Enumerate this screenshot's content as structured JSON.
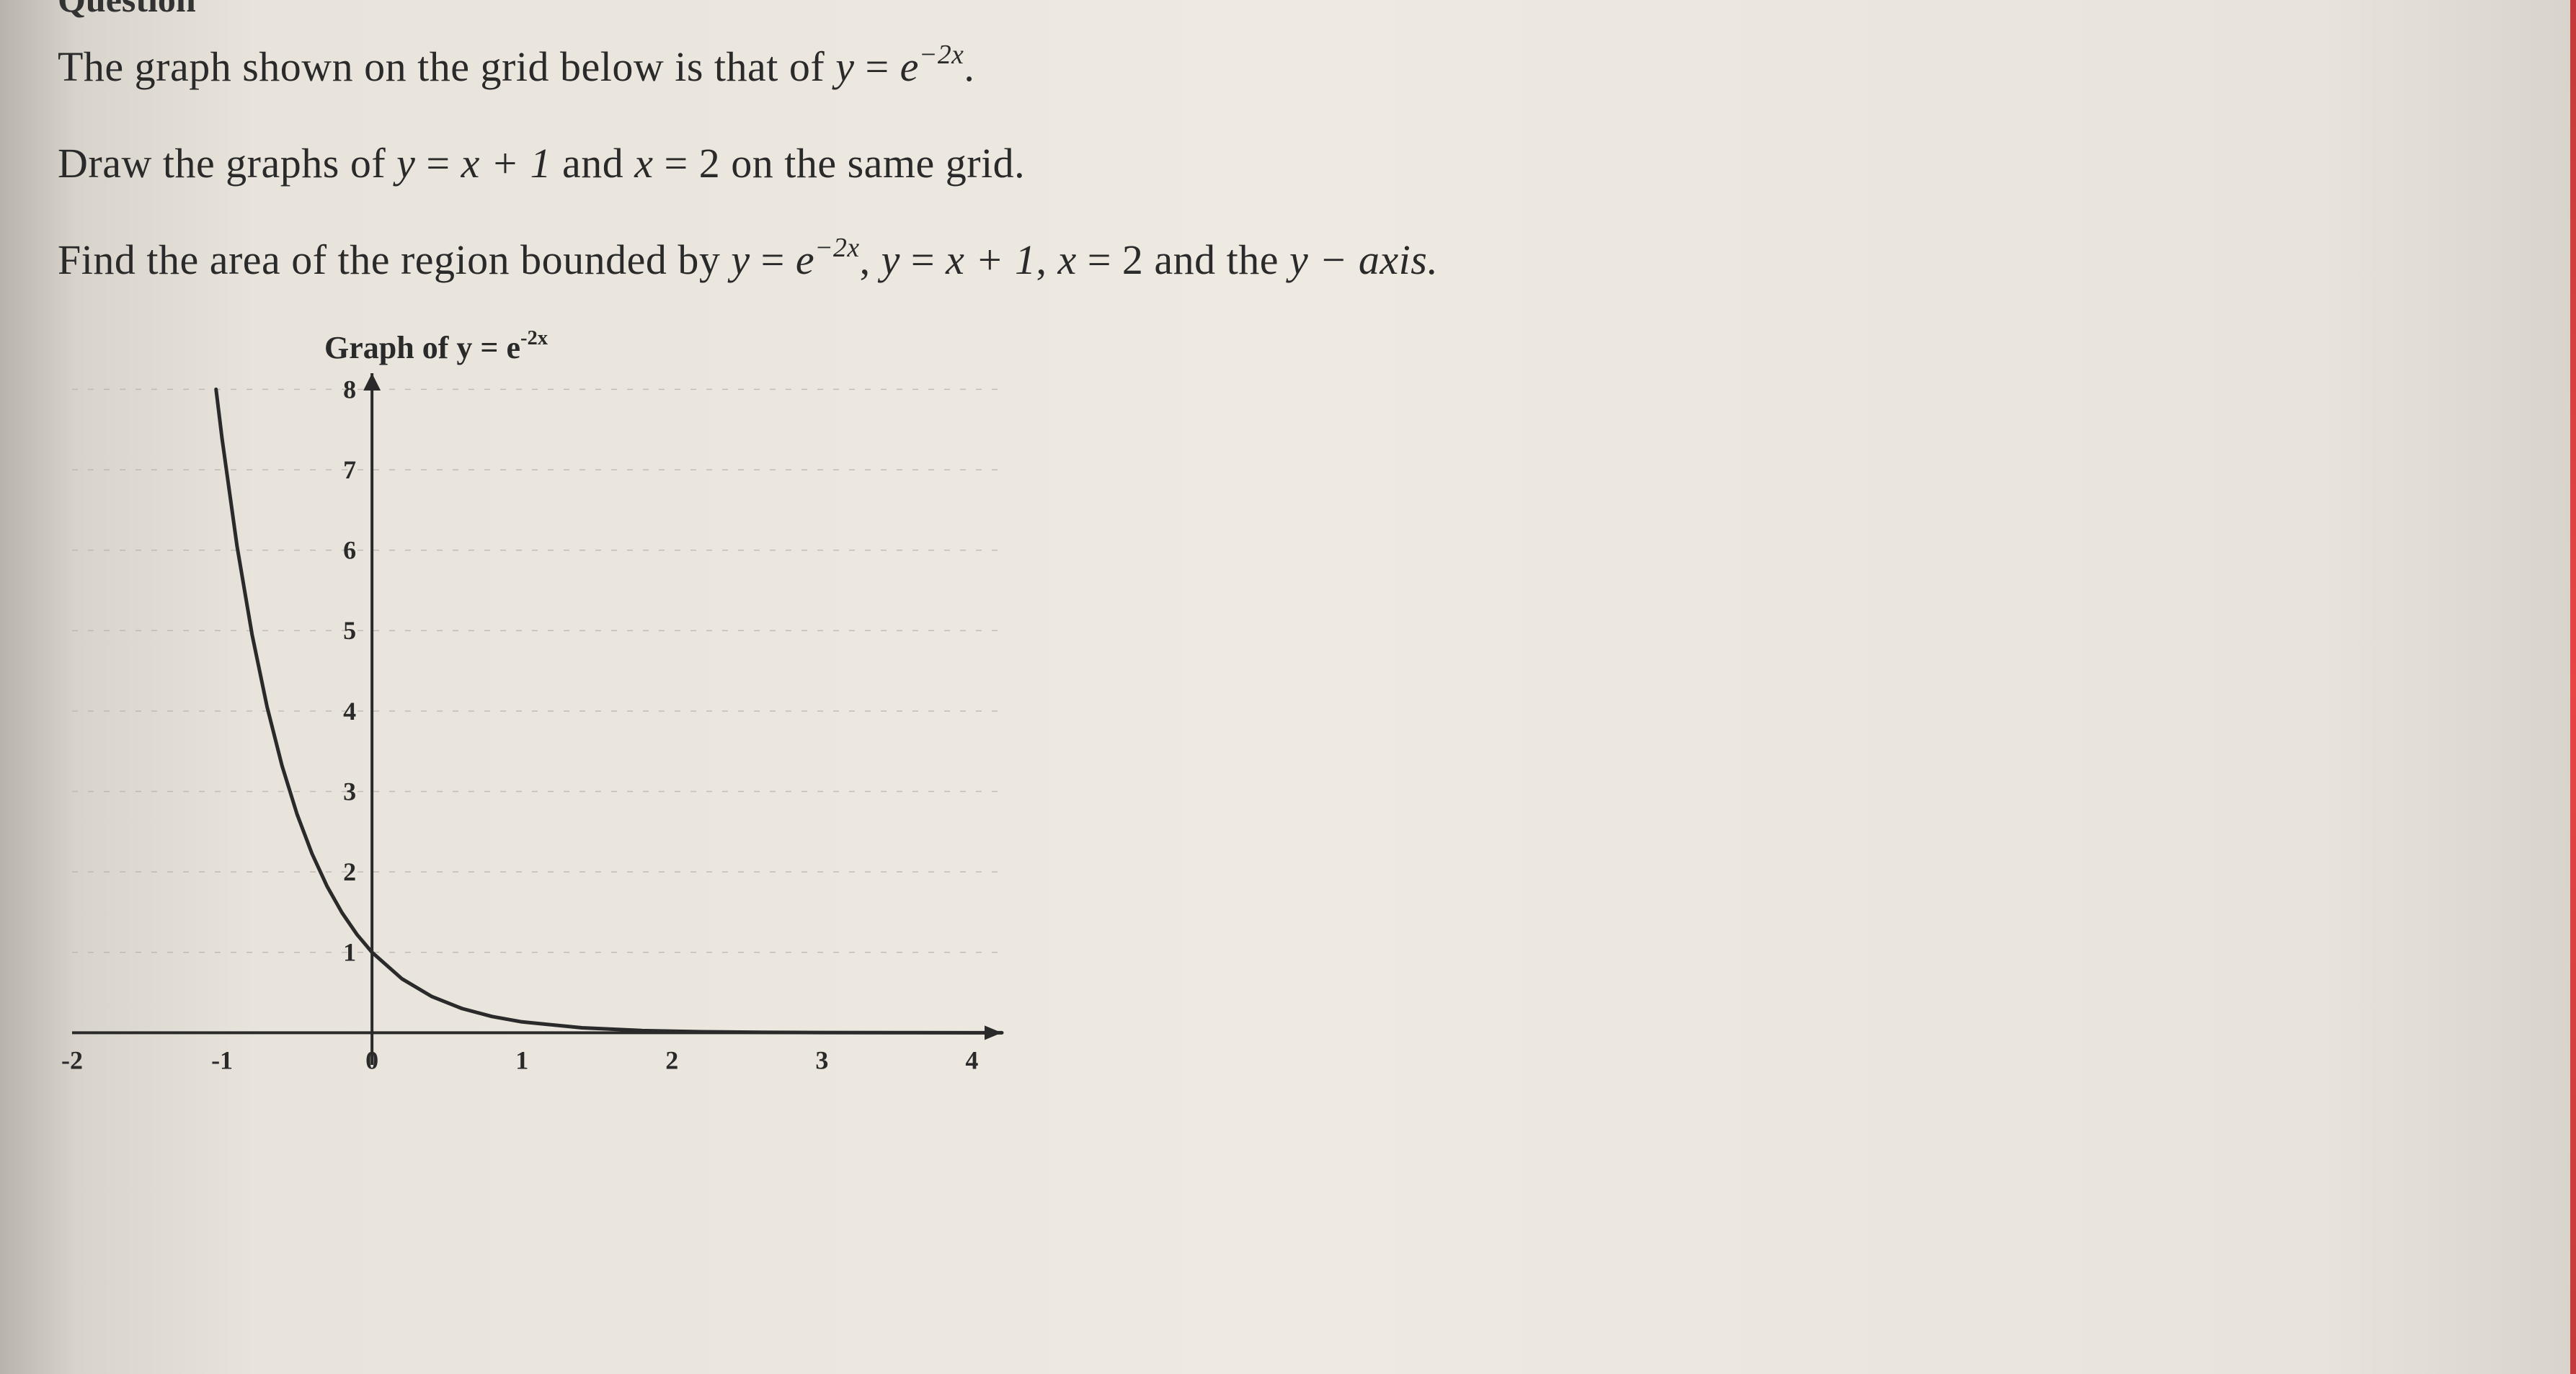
{
  "heading_fragment": "Question",
  "line1_pre": "The graph shown on the grid below is that of ",
  "line1_eq_lhs": "y",
  "line1_eq_rhs_base": "e",
  "line1_eq_rhs_exp": "−2x",
  "line1_post": ".",
  "line2_pre": "Draw the graphs of ",
  "line2_eq1_lhs": "y",
  "line2_eq1_rhs": "x + 1",
  "line2_mid": " and ",
  "line2_eq2_lhs": "x",
  "line2_eq2_rhs": "2",
  "line2_post": " on the same grid.",
  "line3_pre": "Find the area of the region bounded by ",
  "line3_eq1_lhs": "y",
  "line3_eq1_rhs_base": "e",
  "line3_eq1_rhs_exp": "−2x",
  "line3_sep1": ",  ",
  "line3_eq2_lhs": "y",
  "line3_eq2_rhs": "x + 1",
  "line3_sep2": ",  ",
  "line3_eq3_lhs": "x",
  "line3_eq3_rhs": "2",
  "line3_mid": "  and the  ",
  "line3_axis_var": "y",
  "line3_axis_word": " − axis.",
  "graph_title_pre": "Graph of ",
  "graph_title_lhs": "y",
  "graph_title_rhs_base": "e",
  "graph_title_rhs_exp": "-2x",
  "chart": {
    "type": "line",
    "xlim": [
      -2,
      4.2
    ],
    "ylim": [
      -0.4,
      8.2
    ],
    "xticks": [
      -2,
      -1,
      0,
      1,
      2,
      3,
      4
    ],
    "yticks": [
      0,
      1,
      2,
      3,
      4,
      5,
      6,
      7,
      8
    ],
    "grid_color": "#b8b4ac",
    "axis_color": "#2a2a2a",
    "axis_width": 4,
    "grid_width": 1.5,
    "tick_fontsize": 36,
    "curve_color": "#2a2a2a",
    "curve_width": 5,
    "background": "transparent",
    "points": [
      [
        -1.04,
        8.0
      ],
      [
        -1.0,
        7.389
      ],
      [
        -0.9,
        6.05
      ],
      [
        -0.8,
        4.953
      ],
      [
        -0.7,
        4.055
      ],
      [
        -0.6,
        3.32
      ],
      [
        -0.5,
        2.718
      ],
      [
        -0.4,
        2.226
      ],
      [
        -0.3,
        1.822
      ],
      [
        -0.2,
        1.492
      ],
      [
        -0.1,
        1.221
      ],
      [
        0.0,
        1.0
      ],
      [
        0.2,
        0.67
      ],
      [
        0.4,
        0.449
      ],
      [
        0.6,
        0.301
      ],
      [
        0.8,
        0.202
      ],
      [
        1.0,
        0.135
      ],
      [
        1.4,
        0.061
      ],
      [
        1.8,
        0.027
      ],
      [
        2.2,
        0.012
      ],
      [
        2.6,
        0.0055
      ],
      [
        3.0,
        0.0025
      ],
      [
        3.5,
        0.0009
      ],
      [
        4.0,
        0.0003
      ],
      [
        4.2,
        0.0002
      ]
    ]
  }
}
